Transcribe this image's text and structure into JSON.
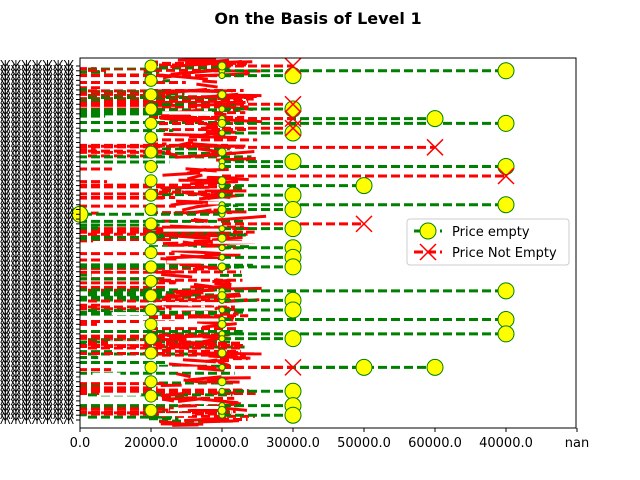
{
  "chart_data": {
    "type": "line",
    "title": "On the Basis of Level 1",
    "xlabel": "",
    "ylabel": "",
    "x_tick_labels": [
      "0.0",
      "20000.0",
      "10000.0",
      "30000.0",
      "50000.0",
      "60000.0",
      "40000.0",
      "nan"
    ],
    "y_tick_labels_note": "dense, unreadable overlapping category labels",
    "y_category_count": 75,
    "legend": {
      "placement": "center-right",
      "entries": [
        "Price empty",
        "Price Not Empty"
      ]
    },
    "grid": false,
    "series": [
      {
        "name": "Price empty",
        "color": "#008000",
        "marker": "circle",
        "marker_face": "#ffff00",
        "line_style": "dashed",
        "points": [
          {
            "y": 1,
            "x": "40000.0"
          },
          {
            "y": 2,
            "x": "30000.0"
          },
          {
            "y": 9,
            "x": "30000.0"
          },
          {
            "y": 11,
            "x": "60000.0"
          },
          {
            "y": 12,
            "x": "40000.0"
          },
          {
            "y": 14,
            "x": "30000.0"
          },
          {
            "y": 20,
            "x": "30000.0"
          },
          {
            "y": 21,
            "x": "40000.0"
          },
          {
            "y": 25,
            "x": "50000.0"
          },
          {
            "y": 27,
            "x": "30000.0"
          },
          {
            "y": 29,
            "x": "40000.0"
          },
          {
            "y": 30,
            "x": "30000.0"
          },
          {
            "y": 31,
            "x": "0.0"
          },
          {
            "y": 34,
            "x": "30000.0"
          },
          {
            "y": 38,
            "x": "30000.0"
          },
          {
            "y": 40,
            "x": "30000.0"
          },
          {
            "y": 42,
            "x": "30000.0"
          },
          {
            "y": 47,
            "x": "40000.0"
          },
          {
            "y": 49,
            "x": "30000.0"
          },
          {
            "y": 51,
            "x": "30000.0"
          },
          {
            "y": 53,
            "x": "40000.0"
          },
          {
            "y": 56,
            "x": "40000.0"
          },
          {
            "y": 57,
            "x": "30000.0"
          },
          {
            "y": 63,
            "x": "50000.0"
          },
          {
            "y": 63,
            "x": "60000.0"
          },
          {
            "y": 68,
            "x": "30000.0"
          },
          {
            "y": 71,
            "x": "30000.0"
          },
          {
            "y": 73,
            "x": "30000.0"
          }
        ]
      },
      {
        "name": "Price Not Empty",
        "color": "#ff0000",
        "marker": "x",
        "line_style": "dashed",
        "points": [
          {
            "y": 0,
            "x": "30000.0"
          },
          {
            "y": 8,
            "x": "30000.0"
          },
          {
            "y": 11,
            "x": "30000.0"
          },
          {
            "y": 13,
            "x": "30000.0"
          },
          {
            "y": 17,
            "x": "60000.0"
          },
          {
            "y": 23,
            "x": "40000.0"
          },
          {
            "y": 33,
            "x": "50000.0"
          },
          {
            "y": 63,
            "x": "30000.0"
          }
        ]
      }
    ]
  }
}
